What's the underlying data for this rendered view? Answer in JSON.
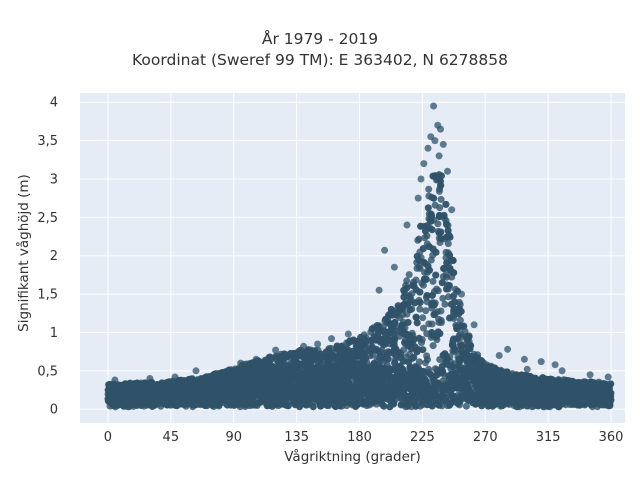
{
  "chart_data": {
    "type": "scatter",
    "title": "År 1979 - 2019",
    "subtitle": "Koordinat (Sweref 99 TM): E 363402, N 6278858",
    "xlabel": "Vågriktning (grader)",
    "ylabel": "Signifikant våghöjd (m)",
    "xlim": [
      -20,
      370
    ],
    "ylim": [
      -0.18,
      4.12
    ],
    "xticks": [
      0,
      45,
      90,
      135,
      180,
      225,
      270,
      315,
      360
    ],
    "xtick_labels": [
      "0",
      "45",
      "90",
      "135",
      "180",
      "225",
      "270",
      "315",
      "360"
    ],
    "yticks": [
      0,
      0.5,
      1,
      1.5,
      2,
      2.5,
      3,
      3.5,
      4
    ],
    "ytick_labels": [
      "0",
      "0,5",
      "1",
      "1,5",
      "2",
      "2,5",
      "3",
      "3,5",
      "4"
    ],
    "grid": true,
    "plot_background": "#e5ecf6",
    "marker_color": "#2f5369",
    "envelope": {
      "x": [
        0,
        20,
        45,
        70,
        90,
        110,
        135,
        160,
        180,
        195,
        210,
        220,
        228,
        232,
        235,
        238,
        242,
        248,
        255,
        262,
        270,
        290,
        315,
        340,
        360
      ],
      "upper": [
        0.28,
        0.3,
        0.32,
        0.38,
        0.5,
        0.62,
        0.73,
        0.78,
        0.9,
        1.1,
        1.45,
        2.1,
        2.8,
        3.05,
        3.25,
        3.15,
        2.75,
        1.8,
        1.1,
        0.75,
        0.55,
        0.42,
        0.36,
        0.32,
        0.3
      ]
    },
    "outliers": [
      {
        "x": 233,
        "y": 3.95
      },
      {
        "x": 236,
        "y": 3.7
      },
      {
        "x": 238,
        "y": 3.65
      },
      {
        "x": 231,
        "y": 3.55
      },
      {
        "x": 234,
        "y": 3.5
      },
      {
        "x": 240,
        "y": 3.45
      },
      {
        "x": 229,
        "y": 3.4
      },
      {
        "x": 237,
        "y": 3.3
      },
      {
        "x": 226,
        "y": 3.2
      },
      {
        "x": 243,
        "y": 3.1
      },
      {
        "x": 224,
        "y": 3.0
      },
      {
        "x": 222,
        "y": 2.75
      },
      {
        "x": 246,
        "y": 2.6
      },
      {
        "x": 214,
        "y": 2.4
      },
      {
        "x": 198,
        "y": 2.07
      },
      {
        "x": 205,
        "y": 1.85
      },
      {
        "x": 253,
        "y": 1.5
      },
      {
        "x": 194,
        "y": 1.55
      },
      {
        "x": 262,
        "y": 1.1
      },
      {
        "x": 286,
        "y": 0.78
      },
      {
        "x": 280,
        "y": 0.7
      },
      {
        "x": 298,
        "y": 0.65
      },
      {
        "x": 310,
        "y": 0.62
      },
      {
        "x": 320,
        "y": 0.58
      },
      {
        "x": 325,
        "y": 0.5
      },
      {
        "x": 345,
        "y": 0.45
      },
      {
        "x": 358,
        "y": 0.42
      },
      {
        "x": 300,
        "y": 0.52
      },
      {
        "x": 160,
        "y": 0.92
      },
      {
        "x": 172,
        "y": 0.98
      },
      {
        "x": 150,
        "y": 0.85
      },
      {
        "x": 140,
        "y": 0.82
      },
      {
        "x": 120,
        "y": 0.77
      },
      {
        "x": 95,
        "y": 0.6
      },
      {
        "x": 63,
        "y": 0.5
      },
      {
        "x": 30,
        "y": 0.4
      },
      {
        "x": 5,
        "y": 0.38
      },
      {
        "x": 48,
        "y": 0.42
      },
      {
        "x": 78,
        "y": 0.45
      },
      {
        "x": 106,
        "y": 0.65
      }
    ]
  }
}
